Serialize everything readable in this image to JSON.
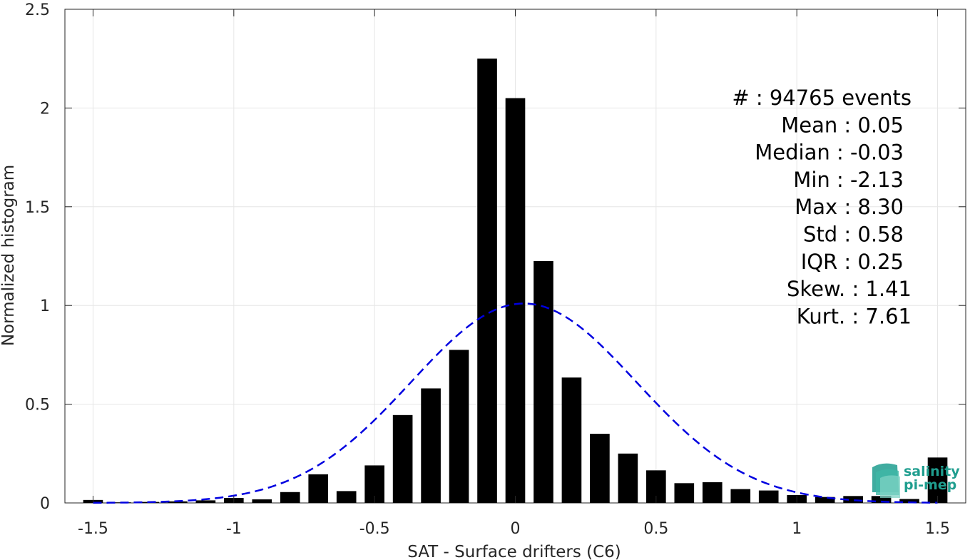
{
  "chart_data": {
    "type": "bar",
    "title": "",
    "xlabel": "SAT - Surface drifters (C6)",
    "ylabel": "Normalized histogram",
    "xlim": [
      -1.6,
      1.6
    ],
    "ylim": [
      0,
      2.5
    ],
    "xticks": [
      -1.5,
      -1,
      -0.5,
      0,
      0.5,
      1,
      1.5
    ],
    "xtick_labels": [
      "-1.5",
      "-1",
      "-0.5",
      "0",
      "0.5",
      "1",
      "1.5"
    ],
    "yticks": [
      0,
      0.5,
      1,
      1.5,
      2,
      2.5
    ],
    "ytick_labels": [
      "0",
      "0.5",
      "1",
      "1.5",
      "2",
      "2.5"
    ],
    "grid": true,
    "bar_width": 0.07,
    "bar_color": "#000000",
    "bars": [
      {
        "x": -1.5,
        "y": 0.015
      },
      {
        "x": -1.4,
        "y": 0.003
      },
      {
        "x": -1.3,
        "y": 0.005
      },
      {
        "x": -1.2,
        "y": 0.008
      },
      {
        "x": -1.1,
        "y": 0.013
      },
      {
        "x": -1.0,
        "y": 0.025
      },
      {
        "x": -0.9,
        "y": 0.018
      },
      {
        "x": -0.8,
        "y": 0.055
      },
      {
        "x": -0.7,
        "y": 0.145
      },
      {
        "x": -0.6,
        "y": 0.06
      },
      {
        "x": -0.5,
        "y": 0.19
      },
      {
        "x": -0.4,
        "y": 0.445
      },
      {
        "x": -0.3,
        "y": 0.58
      },
      {
        "x": -0.2,
        "y": 0.775
      },
      {
        "x": -0.1,
        "y": 2.25
      },
      {
        "x": 0.0,
        "y": 2.05
      },
      {
        "x": 0.1,
        "y": 1.225
      },
      {
        "x": 0.2,
        "y": 0.635
      },
      {
        "x": 0.3,
        "y": 0.35
      },
      {
        "x": 0.4,
        "y": 0.25
      },
      {
        "x": 0.5,
        "y": 0.165
      },
      {
        "x": 0.6,
        "y": 0.1
      },
      {
        "x": 0.7,
        "y": 0.105
      },
      {
        "x": 0.8,
        "y": 0.07
      },
      {
        "x": 0.9,
        "y": 0.063
      },
      {
        "x": 1.0,
        "y": 0.04
      },
      {
        "x": 1.1,
        "y": 0.03
      },
      {
        "x": 1.2,
        "y": 0.035
      },
      {
        "x": 1.3,
        "y": 0.035
      },
      {
        "x": 1.4,
        "y": 0.02
      },
      {
        "x": 1.5,
        "y": 0.23
      }
    ],
    "fit_curve": {
      "style": "dashed",
      "color": "#0000e0",
      "mean": 0.03,
      "std": 0.4,
      "peak": 1.01,
      "x_range": [
        -1.5,
        1.5
      ]
    },
    "annotation_lines": [
      "#  : 94765 events",
      "Mean : 0.05",
      "Median : -0.03",
      "Min : -2.13",
      "Max : 8.30",
      "Std : 0.58",
      "IQR : 0.25",
      "Skew. : 1.41",
      "Kurt. : 7.61"
    ]
  },
  "logo": {
    "line1": "salinity",
    "line2": "pi-mep",
    "color": "#1f9e8f"
  }
}
